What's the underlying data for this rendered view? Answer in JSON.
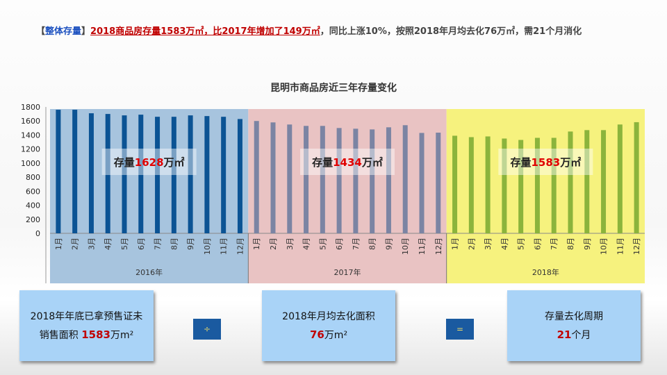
{
  "headline": {
    "bracket_open": "【",
    "tag": "整体存量",
    "bracket_close": "】",
    "emphasis": "2018商品房存量1583万㎡，比2017年增加了149万㎡",
    "rest": "，同比上涨10%，按照2018年月均去化76万㎡，需21个月消化"
  },
  "chart_data": {
    "type": "bar",
    "title": "昆明市商品房近三年存量变化",
    "ylim": [
      0,
      1800
    ],
    "yticks": [
      0,
      200,
      400,
      600,
      800,
      1000,
      1200,
      1400,
      1600,
      1800
    ],
    "groups": [
      {
        "year": "2016年",
        "color": "#0b5394",
        "band": "#a7c4de",
        "label_prefix": "存量",
        "label_value": "1628",
        "label_suffix": "万㎡",
        "categories": [
          "1月",
          "2月",
          "3月",
          "4月",
          "5月",
          "6月",
          "7月",
          "8月",
          "9月",
          "10月",
          "11月",
          "12月"
        ],
        "values": [
          1760,
          1760,
          1710,
          1700,
          1680,
          1690,
          1660,
          1660,
          1680,
          1670,
          1660,
          1628
        ]
      },
      {
        "year": "2017年",
        "color": "#7b84a3",
        "band": "#e9c3c3",
        "label_prefix": "存量",
        "label_value": "1434",
        "label_suffix": "万㎡",
        "categories": [
          "1月",
          "2月",
          "3月",
          "4月",
          "5月",
          "6月",
          "7月",
          "8月",
          "9月",
          "10月",
          "11月",
          "12月"
        ],
        "values": [
          1600,
          1580,
          1550,
          1530,
          1530,
          1500,
          1490,
          1480,
          1510,
          1540,
          1430,
          1434
        ]
      },
      {
        "year": "2018年",
        "color": "#8bb43c",
        "band": "#f6f27e",
        "label_prefix": "存量",
        "label_value": "1583",
        "label_suffix": "万㎡",
        "categories": [
          "1月",
          "2月",
          "3月",
          "4月",
          "5月",
          "6月",
          "7月",
          "8月",
          "9月",
          "10月",
          "11月",
          "12月"
        ],
        "values": [
          1390,
          1370,
          1380,
          1350,
          1330,
          1360,
          1360,
          1450,
          1470,
          1470,
          1550,
          1583
        ]
      }
    ]
  },
  "formula": {
    "box1_line1": "2018年年底已拿预售证未",
    "box1_line2_prefix": "销售面积 ",
    "box1_value": "1583",
    "box1_unit": "万m²",
    "divide": "÷",
    "box2_line1": "2018年月均去化面积",
    "box2_value": "76",
    "box2_unit": "万m²",
    "equals": "=",
    "box3_line1": "存量去化周期",
    "box3_value": "21",
    "box3_unit": "个月"
  }
}
